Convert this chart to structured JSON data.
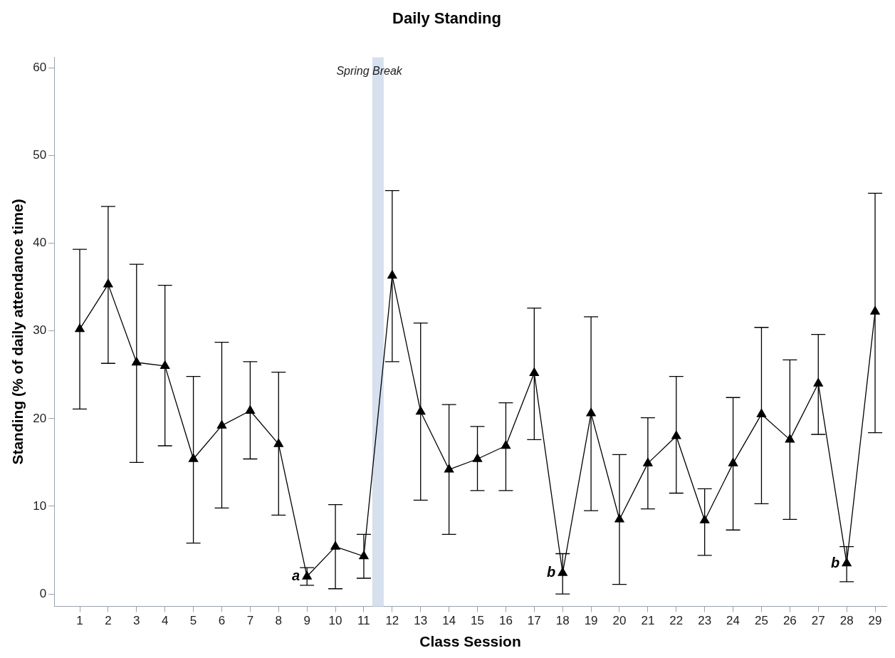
{
  "chart_data": {
    "type": "line",
    "title": "Daily Standing",
    "xlabel": "Class Session",
    "ylabel": "Standing (% of daily attendance time)",
    "x": [
      1,
      2,
      3,
      4,
      5,
      6,
      7,
      8,
      9,
      10,
      11,
      12,
      13,
      14,
      15,
      16,
      17,
      18,
      19,
      20,
      21,
      22,
      23,
      24,
      25,
      26,
      27,
      28,
      29
    ],
    "xlim": [
      0.1,
      29.4
    ],
    "xticks": [
      1,
      2,
      3,
      4,
      5,
      6,
      7,
      8,
      9,
      10,
      11,
      12,
      13,
      14,
      15,
      16,
      17,
      18,
      19,
      20,
      21,
      22,
      23,
      24,
      25,
      26,
      27,
      28,
      29
    ],
    "ylim": [
      -1.4,
      61.2
    ],
    "yticks": [
      0,
      10,
      20,
      30,
      40,
      50,
      60
    ],
    "series": [
      {
        "color": "#000000",
        "values": [
          30.2,
          35.3,
          26.4,
          26.0,
          15.4,
          19.2,
          20.9,
          17.1,
          2.0,
          5.4,
          4.3,
          36.3,
          20.8,
          14.2,
          15.4,
          16.9,
          25.2,
          2.4,
          20.6,
          8.5,
          14.9,
          18.0,
          8.4,
          14.9,
          20.5,
          17.6,
          24.0,
          3.5,
          32.2
        ],
        "errors": [
          [
            21.1,
            39.3
          ],
          [
            26.3,
            44.2
          ],
          [
            15.0,
            37.6
          ],
          [
            16.9,
            35.2
          ],
          [
            5.8,
            24.8
          ],
          [
            9.8,
            28.7
          ],
          [
            15.4,
            26.5
          ],
          [
            9.0,
            25.3
          ],
          [
            1.0,
            3.0
          ],
          [
            0.6,
            10.2
          ],
          [
            1.8,
            6.8
          ],
          [
            26.5,
            46.0
          ],
          [
            10.7,
            30.9
          ],
          [
            6.8,
            21.6
          ],
          [
            11.8,
            19.1
          ],
          [
            11.8,
            21.8
          ],
          [
            17.6,
            32.6
          ],
          [
            0.0,
            4.6
          ],
          [
            9.5,
            31.6
          ],
          [
            1.1,
            15.9
          ],
          [
            9.7,
            20.1
          ],
          [
            11.5,
            24.8
          ],
          [
            4.4,
            12.0
          ],
          [
            7.3,
            22.4
          ],
          [
            10.3,
            30.4
          ],
          [
            8.5,
            26.7
          ],
          [
            18.2,
            29.6
          ],
          [
            1.4,
            5.4
          ],
          [
            18.4,
            45.7
          ]
        ]
      }
    ],
    "bands": [
      {
        "axis": "x",
        "from": 11.3,
        "to": 11.7,
        "label": "Spring Break",
        "color": "#d6e0ef"
      }
    ],
    "annotations": [
      {
        "text": "a",
        "x": 9,
        "y": 2.0
      },
      {
        "text": "b",
        "x": 18,
        "y": 2.4
      },
      {
        "text": "b",
        "x": 28,
        "y": 3.5
      }
    ],
    "marker": "triangle",
    "line_style": "solid",
    "grid": false,
    "legend": false
  }
}
